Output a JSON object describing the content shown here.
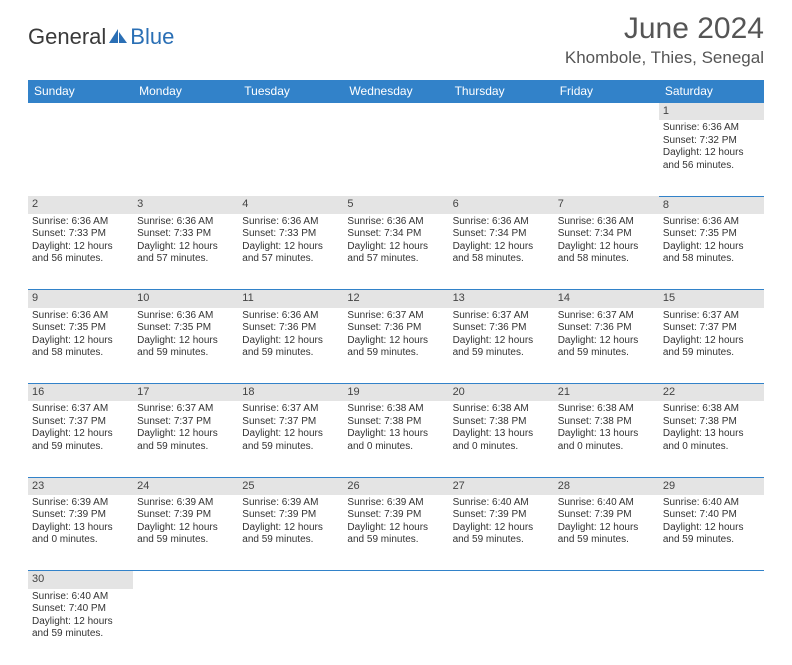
{
  "logo": {
    "part1": "General",
    "part2": "Blue",
    "text_color": "#3a3a3a",
    "accent_color": "#2a6fb5"
  },
  "title": "June 2024",
  "location": "Khombole, Thies, Senegal",
  "title_fontsize": 30,
  "location_fontsize": 17,
  "colors": {
    "header_bg": "#3282c9",
    "header_text": "#ffffff",
    "daynum_bg": "#e4e4e4",
    "cell_border": "#3282c9",
    "body_text": "#333333",
    "background": "#ffffff"
  },
  "font": {
    "cell_size": 10,
    "daynum_size": 11,
    "weekday_size": 12
  },
  "weekdays": [
    "Sunday",
    "Monday",
    "Tuesday",
    "Wednesday",
    "Thursday",
    "Friday",
    "Saturday"
  ],
  "weeks": [
    {
      "nums": [
        "",
        "",
        "",
        "",
        "",
        "",
        "1"
      ],
      "cells": [
        null,
        null,
        null,
        null,
        null,
        null,
        {
          "sunrise": "Sunrise: 6:36 AM",
          "sunset": "Sunset: 7:32 PM",
          "day1": "Daylight: 12 hours",
          "day2": "and 56 minutes."
        }
      ]
    },
    {
      "nums": [
        "2",
        "3",
        "4",
        "5",
        "6",
        "7",
        "8"
      ],
      "cells": [
        {
          "sunrise": "Sunrise: 6:36 AM",
          "sunset": "Sunset: 7:33 PM",
          "day1": "Daylight: 12 hours",
          "day2": "and 56 minutes."
        },
        {
          "sunrise": "Sunrise: 6:36 AM",
          "sunset": "Sunset: 7:33 PM",
          "day1": "Daylight: 12 hours",
          "day2": "and 57 minutes."
        },
        {
          "sunrise": "Sunrise: 6:36 AM",
          "sunset": "Sunset: 7:33 PM",
          "day1": "Daylight: 12 hours",
          "day2": "and 57 minutes."
        },
        {
          "sunrise": "Sunrise: 6:36 AM",
          "sunset": "Sunset: 7:34 PM",
          "day1": "Daylight: 12 hours",
          "day2": "and 57 minutes."
        },
        {
          "sunrise": "Sunrise: 6:36 AM",
          "sunset": "Sunset: 7:34 PM",
          "day1": "Daylight: 12 hours",
          "day2": "and 58 minutes."
        },
        {
          "sunrise": "Sunrise: 6:36 AM",
          "sunset": "Sunset: 7:34 PM",
          "day1": "Daylight: 12 hours",
          "day2": "and 58 minutes."
        },
        {
          "sunrise": "Sunrise: 6:36 AM",
          "sunset": "Sunset: 7:35 PM",
          "day1": "Daylight: 12 hours",
          "day2": "and 58 minutes."
        }
      ]
    },
    {
      "nums": [
        "9",
        "10",
        "11",
        "12",
        "13",
        "14",
        "15"
      ],
      "cells": [
        {
          "sunrise": "Sunrise: 6:36 AM",
          "sunset": "Sunset: 7:35 PM",
          "day1": "Daylight: 12 hours",
          "day2": "and 58 minutes."
        },
        {
          "sunrise": "Sunrise: 6:36 AM",
          "sunset": "Sunset: 7:35 PM",
          "day1": "Daylight: 12 hours",
          "day2": "and 59 minutes."
        },
        {
          "sunrise": "Sunrise: 6:36 AM",
          "sunset": "Sunset: 7:36 PM",
          "day1": "Daylight: 12 hours",
          "day2": "and 59 minutes."
        },
        {
          "sunrise": "Sunrise: 6:37 AM",
          "sunset": "Sunset: 7:36 PM",
          "day1": "Daylight: 12 hours",
          "day2": "and 59 minutes."
        },
        {
          "sunrise": "Sunrise: 6:37 AM",
          "sunset": "Sunset: 7:36 PM",
          "day1": "Daylight: 12 hours",
          "day2": "and 59 minutes."
        },
        {
          "sunrise": "Sunrise: 6:37 AM",
          "sunset": "Sunset: 7:36 PM",
          "day1": "Daylight: 12 hours",
          "day2": "and 59 minutes."
        },
        {
          "sunrise": "Sunrise: 6:37 AM",
          "sunset": "Sunset: 7:37 PM",
          "day1": "Daylight: 12 hours",
          "day2": "and 59 minutes."
        }
      ]
    },
    {
      "nums": [
        "16",
        "17",
        "18",
        "19",
        "20",
        "21",
        "22"
      ],
      "cells": [
        {
          "sunrise": "Sunrise: 6:37 AM",
          "sunset": "Sunset: 7:37 PM",
          "day1": "Daylight: 12 hours",
          "day2": "and 59 minutes."
        },
        {
          "sunrise": "Sunrise: 6:37 AM",
          "sunset": "Sunset: 7:37 PM",
          "day1": "Daylight: 12 hours",
          "day2": "and 59 minutes."
        },
        {
          "sunrise": "Sunrise: 6:37 AM",
          "sunset": "Sunset: 7:37 PM",
          "day1": "Daylight: 12 hours",
          "day2": "and 59 minutes."
        },
        {
          "sunrise": "Sunrise: 6:38 AM",
          "sunset": "Sunset: 7:38 PM",
          "day1": "Daylight: 13 hours",
          "day2": "and 0 minutes."
        },
        {
          "sunrise": "Sunrise: 6:38 AM",
          "sunset": "Sunset: 7:38 PM",
          "day1": "Daylight: 13 hours",
          "day2": "and 0 minutes."
        },
        {
          "sunrise": "Sunrise: 6:38 AM",
          "sunset": "Sunset: 7:38 PM",
          "day1": "Daylight: 13 hours",
          "day2": "and 0 minutes."
        },
        {
          "sunrise": "Sunrise: 6:38 AM",
          "sunset": "Sunset: 7:38 PM",
          "day1": "Daylight: 13 hours",
          "day2": "and 0 minutes."
        }
      ]
    },
    {
      "nums": [
        "23",
        "24",
        "25",
        "26",
        "27",
        "28",
        "29"
      ],
      "cells": [
        {
          "sunrise": "Sunrise: 6:39 AM",
          "sunset": "Sunset: 7:39 PM",
          "day1": "Daylight: 13 hours",
          "day2": "and 0 minutes."
        },
        {
          "sunrise": "Sunrise: 6:39 AM",
          "sunset": "Sunset: 7:39 PM",
          "day1": "Daylight: 12 hours",
          "day2": "and 59 minutes."
        },
        {
          "sunrise": "Sunrise: 6:39 AM",
          "sunset": "Sunset: 7:39 PM",
          "day1": "Daylight: 12 hours",
          "day2": "and 59 minutes."
        },
        {
          "sunrise": "Sunrise: 6:39 AM",
          "sunset": "Sunset: 7:39 PM",
          "day1": "Daylight: 12 hours",
          "day2": "and 59 minutes."
        },
        {
          "sunrise": "Sunrise: 6:40 AM",
          "sunset": "Sunset: 7:39 PM",
          "day1": "Daylight: 12 hours",
          "day2": "and 59 minutes."
        },
        {
          "sunrise": "Sunrise: 6:40 AM",
          "sunset": "Sunset: 7:39 PM",
          "day1": "Daylight: 12 hours",
          "day2": "and 59 minutes."
        },
        {
          "sunrise": "Sunrise: 6:40 AM",
          "sunset": "Sunset: 7:40 PM",
          "day1": "Daylight: 12 hours",
          "day2": "and 59 minutes."
        }
      ]
    },
    {
      "nums": [
        "30",
        "",
        "",
        "",
        "",
        "",
        ""
      ],
      "cells": [
        {
          "sunrise": "Sunrise: 6:40 AM",
          "sunset": "Sunset: 7:40 PM",
          "day1": "Daylight: 12 hours",
          "day2": "and 59 minutes."
        },
        null,
        null,
        null,
        null,
        null,
        null
      ]
    }
  ]
}
